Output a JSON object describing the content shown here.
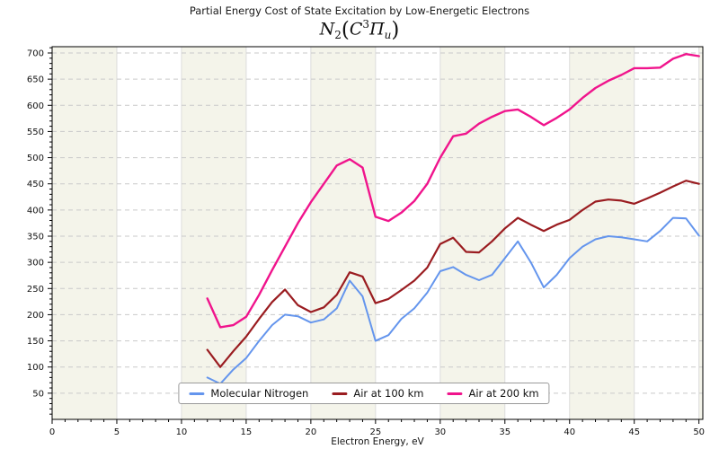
{
  "chart_data": {
    "type": "line",
    "title": "Partial Energy Cost of State Excitation by Low-Energetic Electrons",
    "subtitle": {
      "n": "N",
      "n_sub": "2",
      "open": "(",
      "c": "C",
      "c_sup": "3",
      "pi": "Π",
      "pi_sub": "u",
      "close": ")"
    },
    "xlabel": "Electron Energy, eV",
    "ylabel": "",
    "xlim": [
      0,
      50.3
    ],
    "ylim": [
      0,
      712
    ],
    "x_ticks": [
      0,
      5,
      10,
      15,
      20,
      25,
      30,
      35,
      40,
      45,
      50
    ],
    "y_ticks": [
      50,
      100,
      150,
      200,
      250,
      300,
      350,
      400,
      450,
      500,
      550,
      600,
      650,
      700
    ],
    "grid": "horizontal-dashed, vertical-solid, alternating 5eV background bands",
    "legend_position": "bottom-center-inside",
    "x": [
      12,
      13,
      14,
      15,
      16,
      17,
      18,
      19,
      20,
      21,
      22,
      23,
      24,
      25,
      26,
      27,
      28,
      29,
      30,
      31,
      32,
      33,
      34,
      35,
      36,
      37,
      38,
      39,
      40,
      41,
      42,
      43,
      44,
      45,
      46,
      47,
      48,
      49,
      50
    ],
    "series": [
      {
        "name": "Molecular Nitrogen",
        "color": "#6495ED",
        "values": [
          80,
          68,
          95,
          117,
          150,
          180,
          200,
          197,
          185,
          191,
          212,
          265,
          235,
          150,
          161,
          192,
          212,
          242,
          283,
          291,
          276,
          266,
          276,
          308,
          340,
          300,
          252,
          276,
          308,
          330,
          344,
          350,
          348,
          344,
          340,
          360,
          385,
          384,
          351
        ]
      },
      {
        "name": "Air at 100 km",
        "color": "#9A1C20",
        "values": [
          133,
          100,
          130,
          158,
          192,
          224,
          248,
          218,
          205,
          214,
          238,
          281,
          273,
          222,
          230,
          247,
          265,
          290,
          335,
          347,
          320,
          319,
          340,
          365,
          385,
          372,
          360,
          372,
          381,
          400,
          416,
          420,
          418,
          412,
          422,
          433,
          445,
          456,
          450
        ]
      },
      {
        "name": "Air at 200 km",
        "color": "#F0148C",
        "values": [
          231,
          176,
          180,
          196,
          238,
          285,
          330,
          375,
          415,
          450,
          485,
          497,
          481,
          387,
          379,
          395,
          417,
          450,
          500,
          541,
          546,
          565,
          578,
          589,
          592,
          578,
          562,
          576,
          592,
          614,
          633,
          647,
          658,
          671,
          671,
          672,
          689,
          698,
          694
        ]
      }
    ]
  }
}
